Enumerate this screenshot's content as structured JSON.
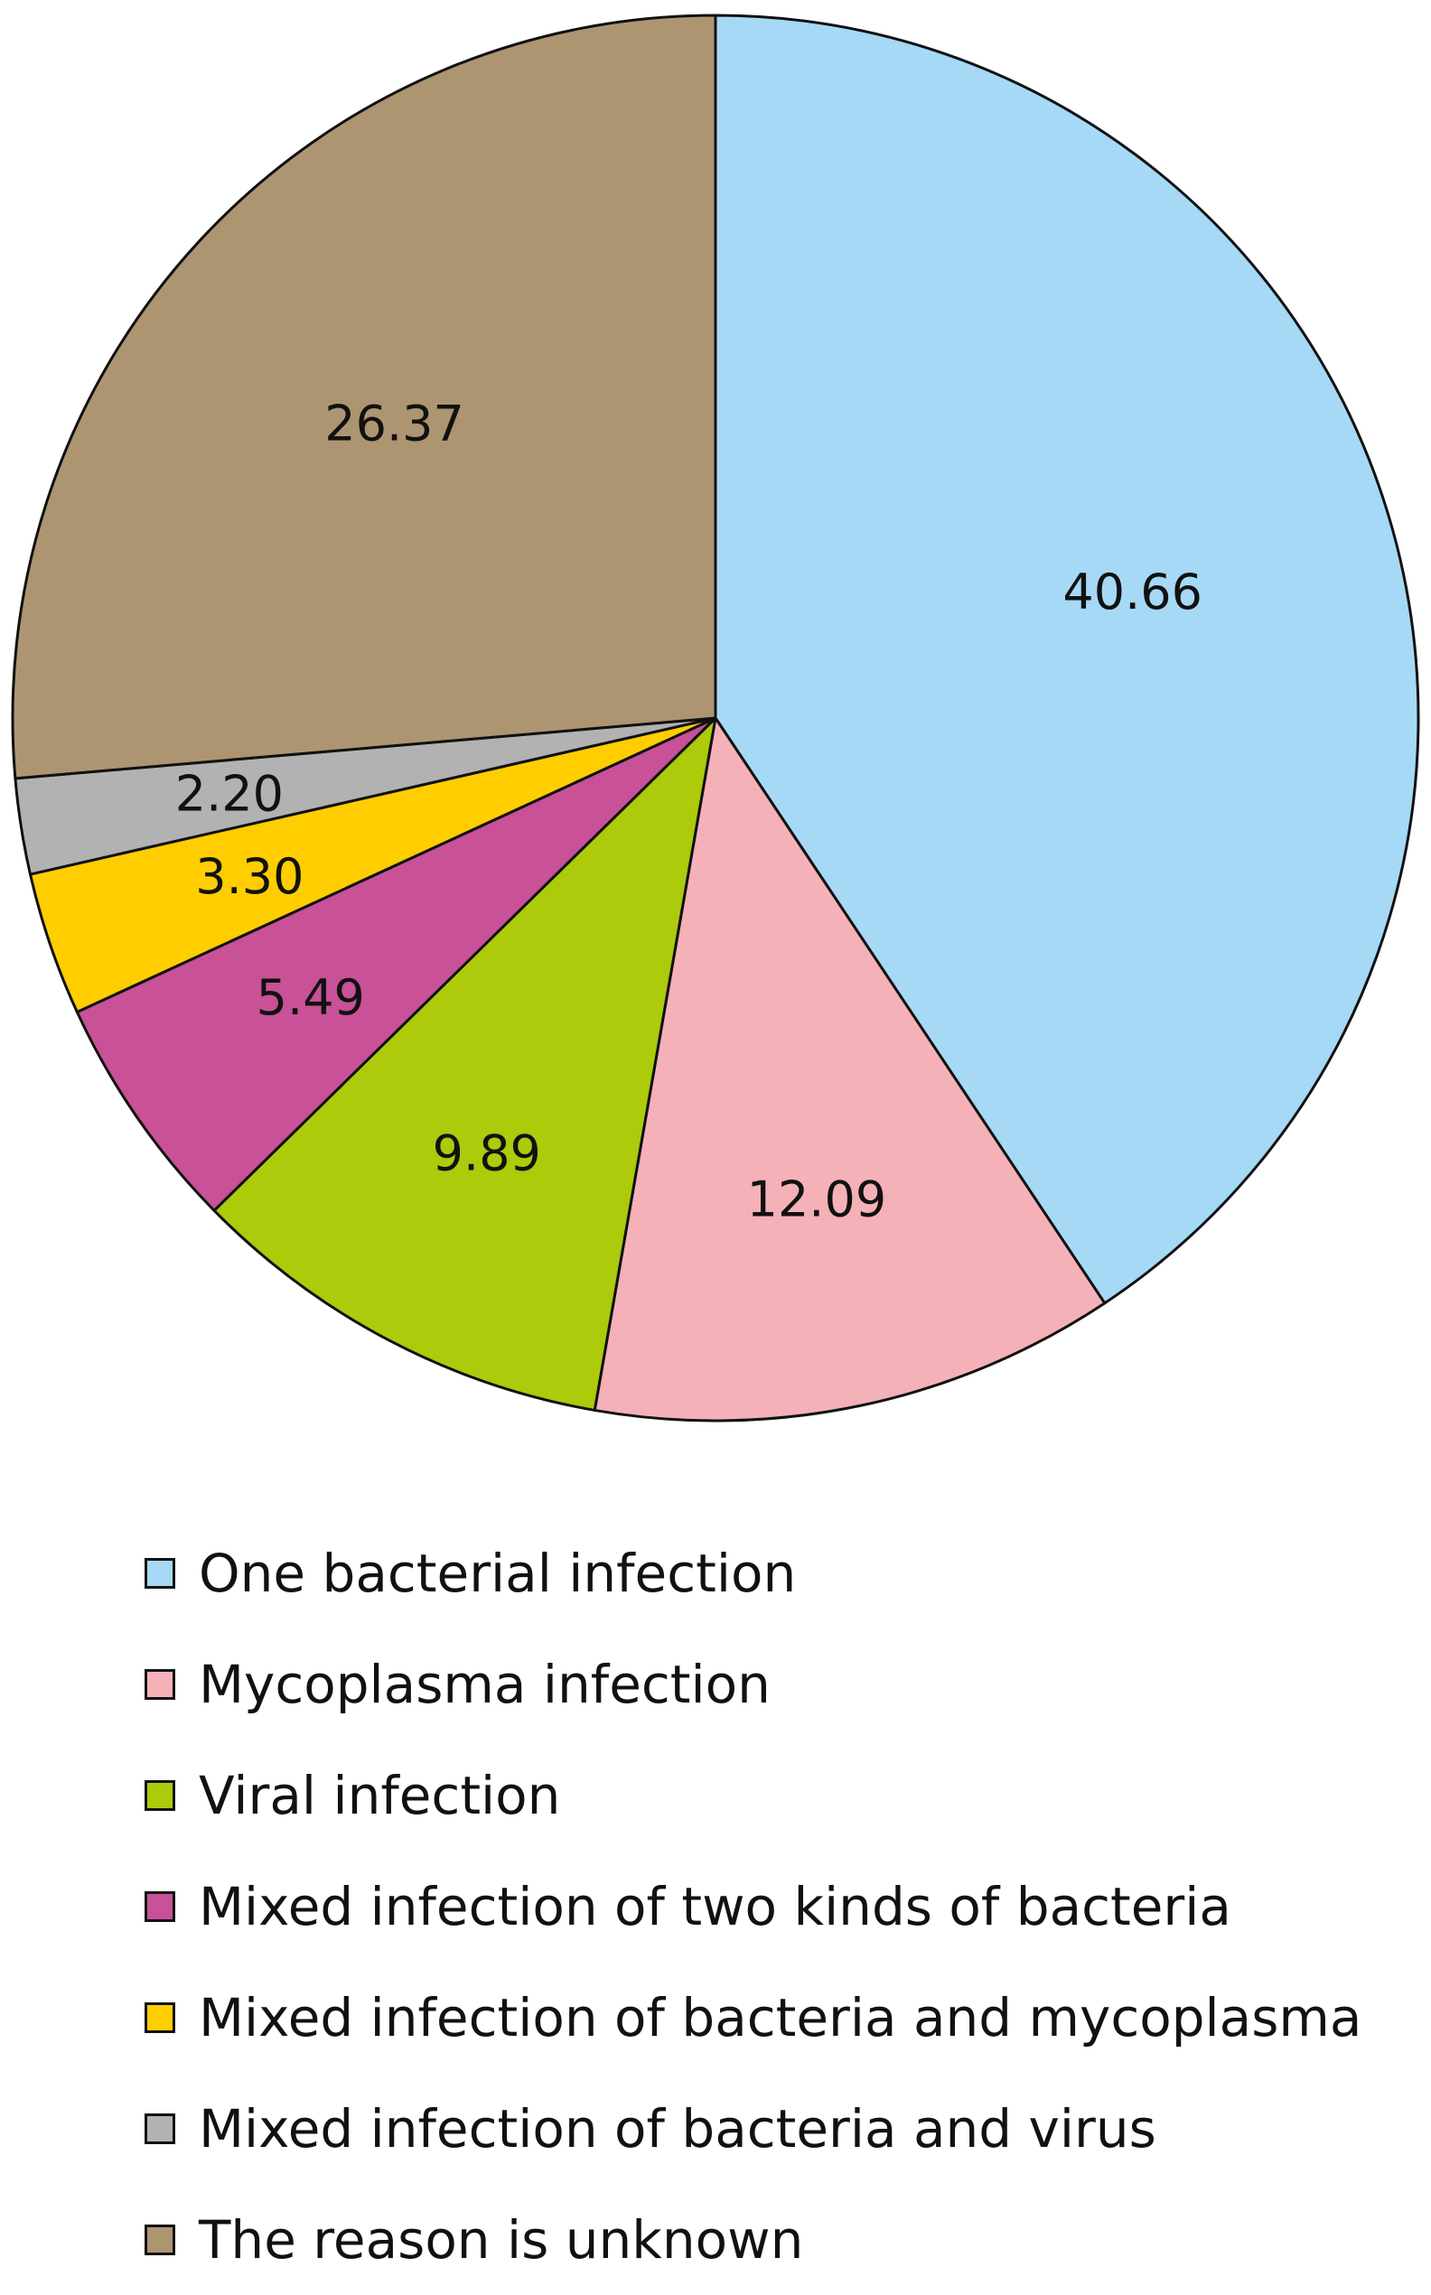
{
  "chart_data": {
    "type": "pie",
    "start_angle_deg": 0,
    "direction": "clockwise",
    "legend_position": "bottom",
    "slices": [
      {
        "label": "One bacterial infection",
        "value": 40.66,
        "value_label": "40.66",
        "color": "#a5d9f6"
      },
      {
        "label": "Mycoplasma infection",
        "value": 12.09,
        "value_label": "12.09",
        "color": "#f5b1b8"
      },
      {
        "label": "Viral infection",
        "value": 9.89,
        "value_label": "9.89",
        "color": "#adca0b"
      },
      {
        "label": "Mixed infection of two kinds of bacteria",
        "value": 5.49,
        "value_label": "5.49",
        "color": "#c85197"
      },
      {
        "label": "Mixed infection of bacteria and mycoplasma",
        "value": 3.3,
        "value_label": "3.30",
        "color": "#ffcd00"
      },
      {
        "label": "Mixed infection of bacteria and virus",
        "value": 2.2,
        "value_label": "2.20",
        "color": "#b2b2b2"
      },
      {
        "label": "The reason is unknown",
        "value": 26.37,
        "value_label": "26.37",
        "color": "#ad9572"
      }
    ]
  }
}
